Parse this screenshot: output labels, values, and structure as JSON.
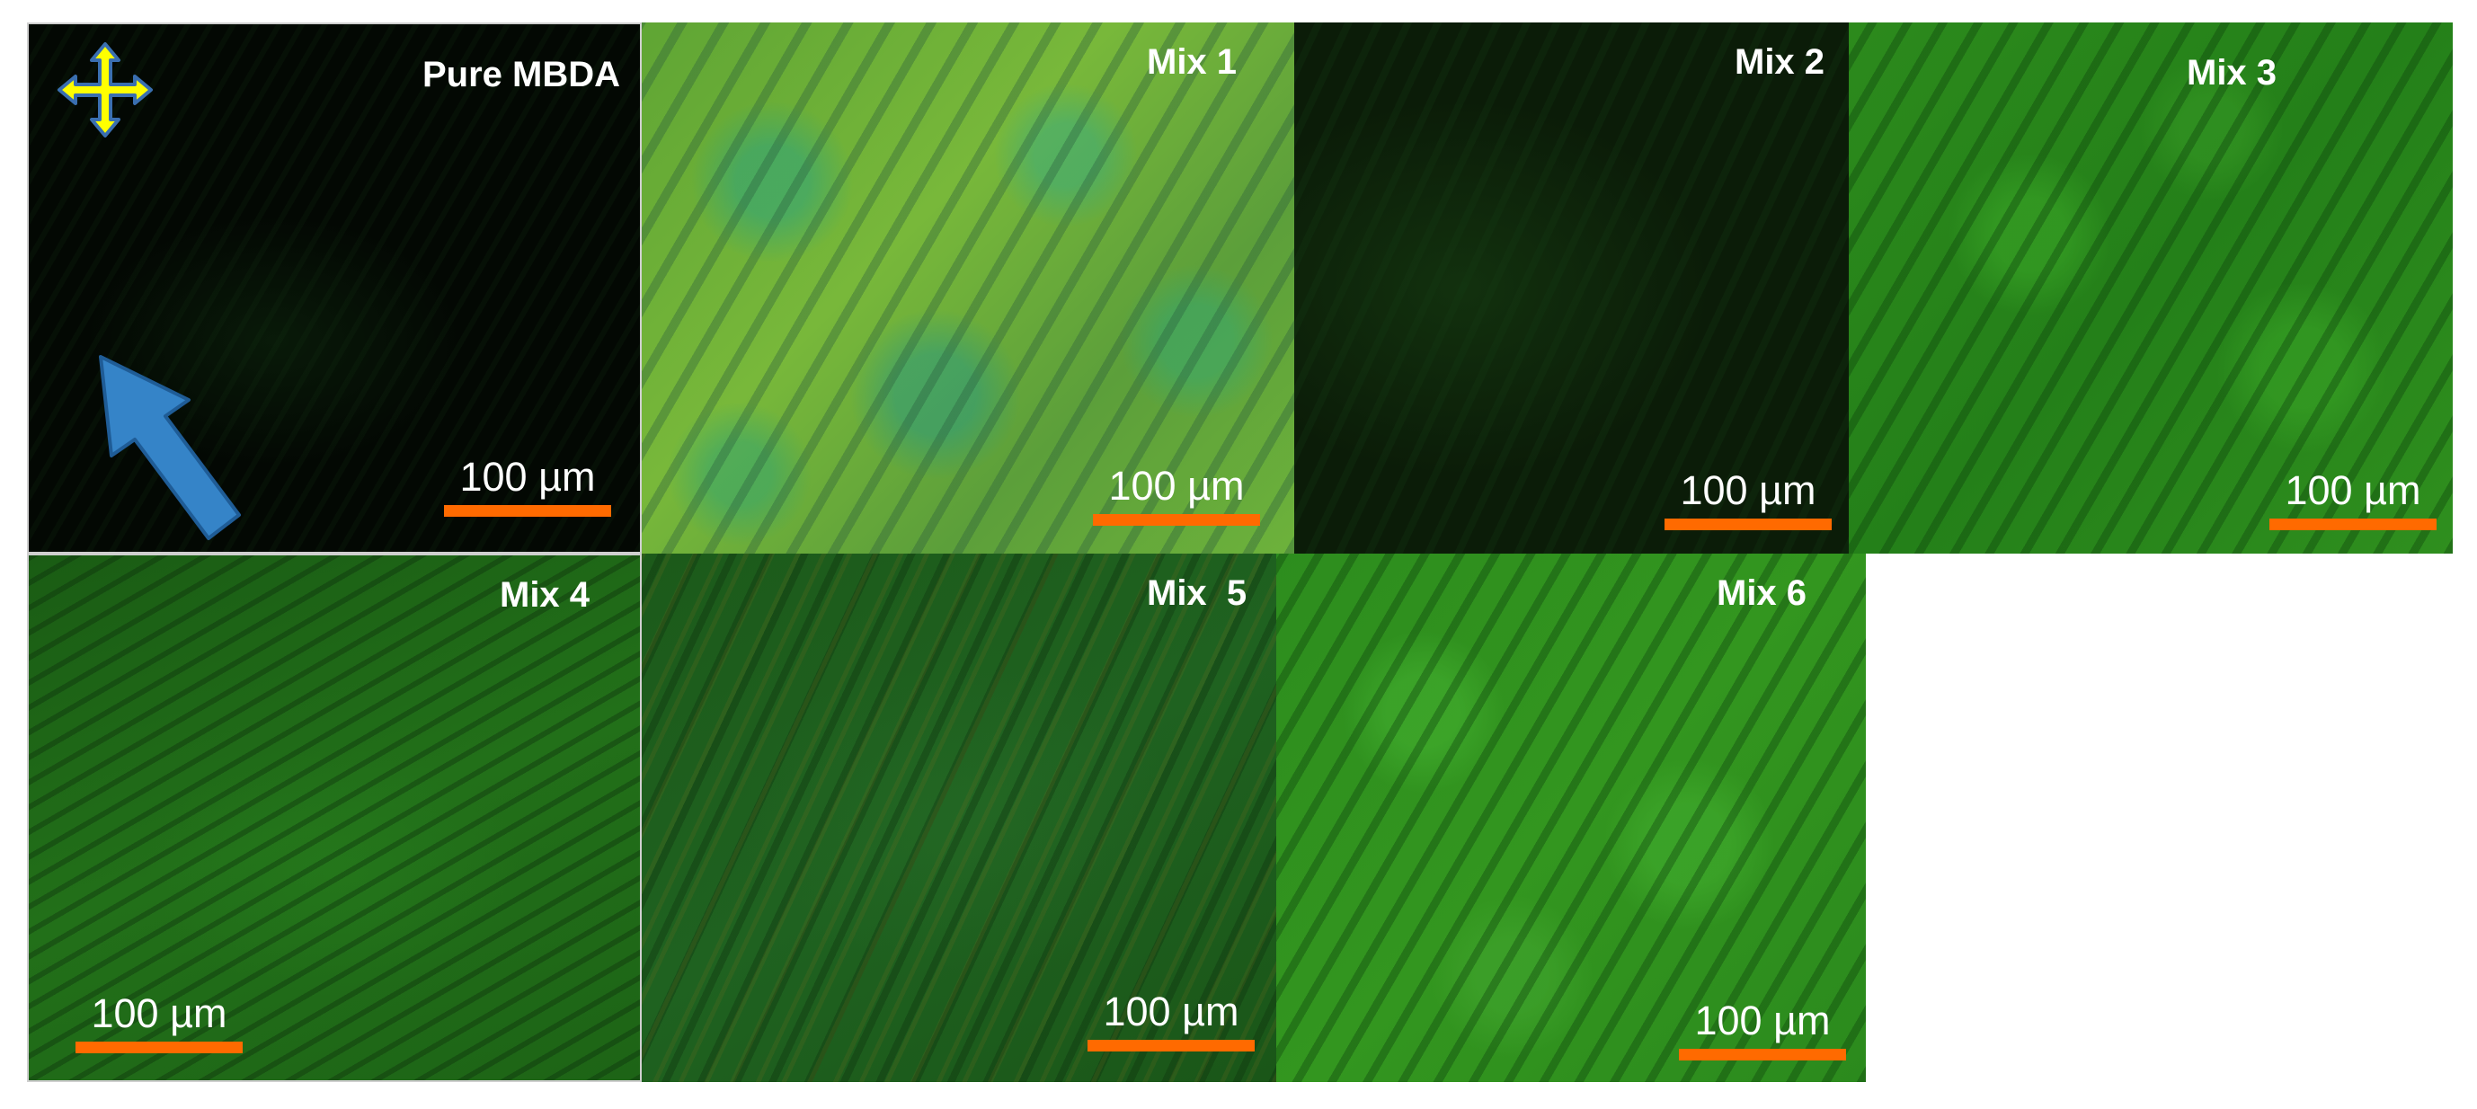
{
  "colors": {
    "scale_bar": "#ff6a00",
    "compass_fill": "#ffff00",
    "compass_stroke": "#3a6fb0",
    "arrow_fill": "#3584c8"
  },
  "icons": {
    "polarizer": "crossed-polarizer-icon",
    "director": "director-arrow-icon"
  },
  "panels": [
    {
      "label": "Pure MBDA",
      "scale": "100 µm"
    },
    {
      "label": "Mix 1",
      "scale": "100 µm"
    },
    {
      "label": "Mix 2",
      "scale": "100 µm"
    },
    {
      "label": "Mix 3",
      "scale": "100 µm"
    },
    {
      "label": "Mix 4",
      "scale": "100 µm"
    },
    {
      "label": "Mix  5",
      "scale": "100 µm"
    },
    {
      "label": "Mix 6",
      "scale": "100 µm"
    }
  ]
}
